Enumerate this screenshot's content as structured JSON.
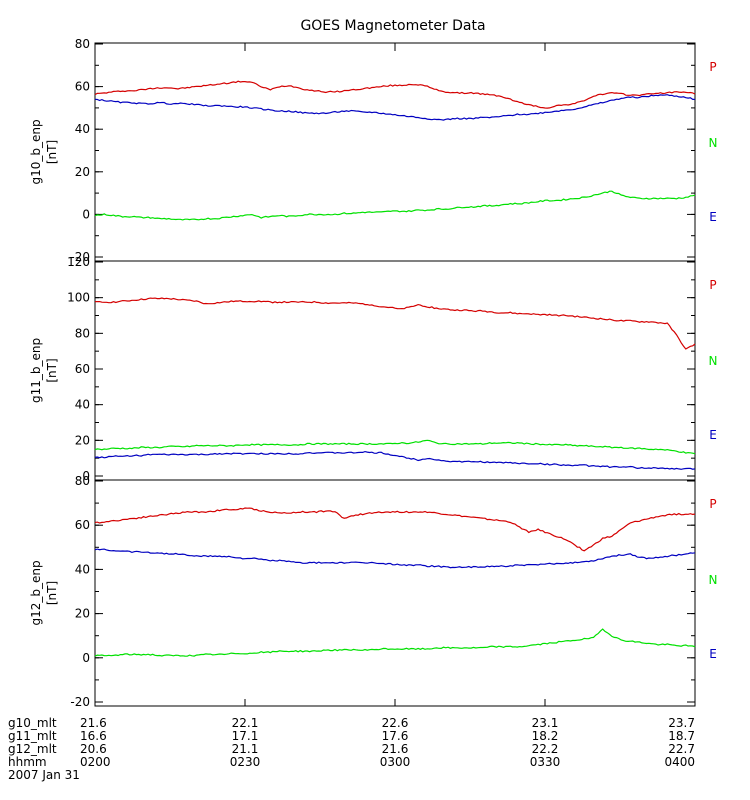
{
  "chart_data": {
    "type": "line",
    "title": "GOES Magnetometer Data",
    "colors": {
      "P": "#d40000",
      "N": "#00e000",
      "E": "#0000c0"
    },
    "component_labels": [
      "P",
      "N",
      "E"
    ],
    "x_range": [
      "0200",
      "0400"
    ],
    "panels": [
      {
        "ylabel": "g10_b_enp",
        "unit": "[nT]",
        "ylim": [
          -20,
          80
        ],
        "yticks": [
          "80",
          "60",
          "40",
          "20",
          "0",
          "-20"
        ],
        "series": [
          {
            "name": "P",
            "values": [
              56.5,
              57.0,
              57.5,
              58.0,
              58.0,
              58.5,
              59.0,
              59.5,
              59.5,
              59.0,
              59.5,
              60.0,
              60.5,
              61.0,
              61.5,
              62.0,
              62.5,
              62.0,
              60.0,
              58.5,
              60.0,
              60.5,
              59.5,
              58.5,
              58.0,
              57.5,
              57.5,
              58.0,
              58.5,
              59.0,
              59.5,
              60.0,
              60.5,
              60.5,
              61.0,
              61.0,
              60.0,
              58.5,
              57.5,
              57.0,
              57.0,
              57.0,
              56.5,
              56.0,
              55.5,
              54.0,
              52.5,
              51.5,
              50.5,
              50.0,
              51.0,
              51.5,
              52.0,
              53.5,
              55.5,
              56.5,
              57.0,
              56.5,
              56.0,
              56.0,
              56.5,
              57.0,
              57.0,
              57.5,
              57.5,
              56.5
            ]
          },
          {
            "name": "N",
            "values": [
              -0.5,
              0.0,
              -0.5,
              -1.0,
              -1.0,
              -1.5,
              -1.5,
              -2.0,
              -2.0,
              -2.5,
              -2.5,
              -2.5,
              -2.0,
              -2.0,
              -1.5,
              -1.0,
              -0.5,
              0.0,
              -1.5,
              -1.0,
              -0.5,
              -1.0,
              -0.5,
              0.0,
              0.0,
              0.0,
              0.0,
              0.5,
              0.5,
              1.0,
              1.0,
              1.0,
              1.5,
              1.5,
              1.5,
              2.0,
              2.0,
              2.5,
              2.5,
              3.0,
              3.5,
              3.5,
              4.0,
              4.0,
              4.5,
              5.0,
              5.0,
              5.5,
              6.0,
              6.5,
              6.5,
              7.0,
              7.5,
              8.0,
              9.0,
              10.0,
              11.0,
              9.0,
              8.0,
              7.5,
              7.5,
              7.5,
              7.5,
              7.5,
              8.0,
              9.0
            ]
          },
          {
            "name": "E",
            "values": [
              54.0,
              53.5,
              53.0,
              52.5,
              52.5,
              52.0,
              52.0,
              52.5,
              52.0,
              52.0,
              52.0,
              51.5,
              51.0,
              51.0,
              51.0,
              50.5,
              50.5,
              50.0,
              49.5,
              49.0,
              48.5,
              48.5,
              48.0,
              47.5,
              47.5,
              47.5,
              48.0,
              48.5,
              48.5,
              48.0,
              48.0,
              47.5,
              47.0,
              46.5,
              46.0,
              45.5,
              45.0,
              44.5,
              44.5,
              45.0,
              45.0,
              45.0,
              45.5,
              45.5,
              46.0,
              46.5,
              47.0,
              47.0,
              47.5,
              48.0,
              48.5,
              49.0,
              49.5,
              50.5,
              51.5,
              52.5,
              53.5,
              54.5,
              55.0,
              55.0,
              55.5,
              56.0,
              56.0,
              55.5,
              55.0,
              54.0
            ]
          }
        ]
      },
      {
        "ylabel": "g11_b_enp",
        "unit": "[nT]",
        "ylim": [
          0,
          120
        ],
        "yticks": [
          "120",
          "100",
          "80",
          "60",
          "40",
          "20",
          "0"
        ],
        "series": [
          {
            "name": "P",
            "values": [
              97.5,
              97.5,
              97.5,
              98.0,
              98.5,
              99.0,
              99.5,
              99.5,
              99.5,
              99.0,
              98.5,
              98.0,
              96.5,
              97.0,
              97.5,
              98.0,
              98.0,
              98.0,
              98.0,
              97.5,
              97.5,
              97.5,
              97.5,
              97.5,
              97.5,
              97.0,
              97.0,
              97.0,
              97.0,
              96.5,
              96.0,
              95.0,
              94.5,
              93.5,
              94.5,
              96.0,
              95.0,
              94.0,
              93.5,
              93.0,
              93.0,
              92.5,
              92.5,
              92.0,
              91.5,
              91.5,
              91.0,
              91.0,
              90.5,
              90.5,
              90.0,
              90.0,
              89.5,
              89.0,
              88.5,
              88.0,
              87.5,
              87.0,
              87.0,
              86.5,
              86.5,
              86.0,
              85.5,
              79.0,
              71.0,
              74.0
            ]
          },
          {
            "name": "N",
            "values": [
              15.0,
              15.0,
              15.5,
              15.5,
              15.5,
              16.0,
              16.0,
              16.0,
              16.5,
              16.5,
              16.5,
              17.0,
              17.0,
              17.0,
              17.0,
              17.0,
              17.5,
              17.5,
              17.5,
              17.5,
              17.5,
              17.5,
              17.5,
              18.0,
              18.0,
              18.0,
              18.0,
              18.0,
              18.0,
              18.0,
              18.0,
              18.0,
              18.0,
              18.5,
              18.5,
              19.0,
              20.0,
              18.5,
              18.0,
              18.0,
              18.0,
              18.0,
              18.0,
              18.5,
              18.5,
              18.5,
              18.5,
              18.0,
              18.0,
              17.5,
              17.5,
              17.5,
              17.0,
              17.0,
              16.5,
              16.5,
              16.0,
              16.0,
              15.5,
              15.5,
              15.0,
              15.0,
              14.5,
              14.0,
              13.0,
              12.5
            ]
          },
          {
            "name": "E",
            "values": [
              10.5,
              10.5,
              11.0,
              11.0,
              11.5,
              11.5,
              12.0,
              12.0,
              12.0,
              12.0,
              12.0,
              12.0,
              12.0,
              12.5,
              12.5,
              12.5,
              12.5,
              12.5,
              12.5,
              12.5,
              12.5,
              12.5,
              12.5,
              13.0,
              13.0,
              13.0,
              13.0,
              13.0,
              13.0,
              13.5,
              13.0,
              13.0,
              12.0,
              11.0,
              10.0,
              9.0,
              10.0,
              9.0,
              8.5,
              8.0,
              8.0,
              8.0,
              8.0,
              7.5,
              7.5,
              7.5,
              7.0,
              7.0,
              7.0,
              6.5,
              6.5,
              6.0,
              6.0,
              6.0,
              5.5,
              5.5,
              5.0,
              5.0,
              5.0,
              4.5,
              4.5,
              4.5,
              4.0,
              4.0,
              4.0,
              4.0
            ]
          }
        ]
      },
      {
        "ylabel": "g12_b_enp",
        "unit": "[nT]",
        "ylim": [
          -20,
          80
        ],
        "yticks": [
          "80",
          "60",
          "40",
          "20",
          "0",
          "-20"
        ],
        "series": [
          {
            "name": "P",
            "values": [
              61.0,
              61.5,
              62.0,
              62.5,
              63.0,
              63.5,
              64.0,
              64.5,
              65.0,
              65.5,
              66.0,
              66.0,
              66.0,
              66.5,
              67.0,
              67.0,
              67.5,
              67.5,
              66.5,
              66.0,
              65.5,
              65.5,
              66.0,
              66.0,
              66.0,
              66.5,
              66.0,
              63.0,
              64.5,
              65.0,
              65.5,
              66.0,
              66.0,
              66.0,
              66.0,
              66.0,
              66.0,
              65.5,
              65.0,
              64.5,
              64.0,
              63.5,
              63.0,
              62.5,
              62.0,
              61.5,
              59.0,
              57.0,
              58.0,
              56.5,
              55.0,
              53.5,
              51.0,
              48.5,
              51.0,
              54.0,
              55.0,
              58.0,
              61.0,
              62.0,
              63.0,
              64.0,
              64.5,
              65.0,
              65.0,
              65.0
            ]
          },
          {
            "name": "N",
            "values": [
              1.0,
              1.0,
              1.0,
              1.5,
              1.5,
              1.5,
              1.5,
              1.0,
              1.0,
              1.0,
              1.0,
              1.0,
              1.5,
              1.5,
              1.5,
              2.0,
              2.0,
              2.0,
              2.5,
              2.5,
              3.0,
              3.0,
              3.0,
              3.0,
              3.0,
              3.5,
              3.5,
              3.5,
              3.5,
              3.5,
              3.5,
              4.0,
              4.0,
              4.0,
              4.0,
              4.0,
              4.0,
              4.5,
              4.5,
              4.5,
              4.5,
              4.5,
              4.5,
              5.0,
              5.0,
              5.0,
              5.0,
              5.5,
              6.0,
              6.5,
              7.0,
              7.5,
              8.0,
              8.5,
              9.0,
              13.0,
              10.0,
              8.0,
              7.5,
              7.0,
              6.5,
              6.0,
              6.0,
              5.5,
              5.5,
              5.0
            ]
          },
          {
            "name": "E",
            "values": [
              49.0,
              49.0,
              48.5,
              48.5,
              48.0,
              48.0,
              47.5,
              47.5,
              47.0,
              47.0,
              46.5,
              46.0,
              46.0,
              46.0,
              46.0,
              45.5,
              45.0,
              45.0,
              44.5,
              44.0,
              44.0,
              43.5,
              43.0,
              43.0,
              43.0,
              43.0,
              43.0,
              43.0,
              43.0,
              43.0,
              43.0,
              42.5,
              42.5,
              42.0,
              42.0,
              42.0,
              41.5,
              41.5,
              41.0,
              41.0,
              41.0,
              41.0,
              41.0,
              41.5,
              41.5,
              41.5,
              42.0,
              42.0,
              42.0,
              42.5,
              42.5,
              43.0,
              43.0,
              43.5,
              44.0,
              45.0,
              46.0,
              46.5,
              47.0,
              45.5,
              45.0,
              45.5,
              46.0,
              46.5,
              47.0,
              47.5
            ]
          }
        ]
      }
    ],
    "footer": {
      "rows": [
        {
          "label": "g10_mlt",
          "values": [
            "21.6",
            "22.1",
            "22.6",
            "23.1",
            "23.7"
          ]
        },
        {
          "label": "g11_mlt",
          "values": [
            "16.6",
            "17.1",
            "17.6",
            "18.2",
            "18.7"
          ]
        },
        {
          "label": "g12_mlt",
          "values": [
            "20.6",
            "21.1",
            "21.6",
            "22.2",
            "22.7"
          ]
        },
        {
          "label": "hhmm",
          "values": [
            "0200",
            "0230",
            "0300",
            "0330",
            "0400"
          ]
        }
      ],
      "date": "2007 Jan 31"
    }
  }
}
